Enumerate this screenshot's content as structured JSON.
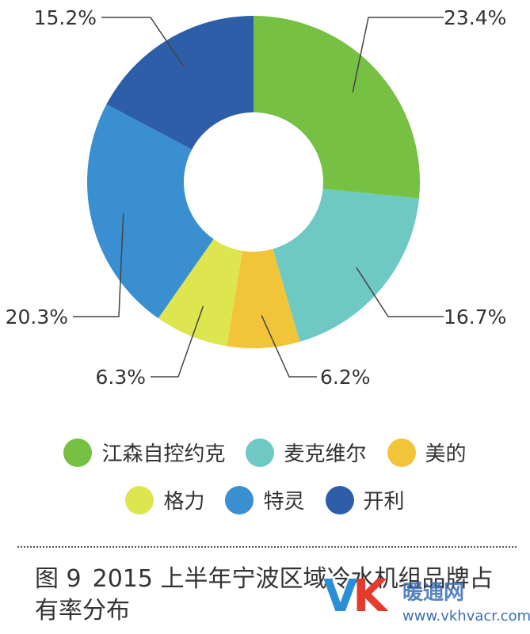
{
  "chart_data": {
    "type": "pie",
    "variant": "donut",
    "categories": [
      "江森自控约克",
      "麦克维尔",
      "美的",
      "格力",
      "特灵",
      "开利"
    ],
    "values": [
      23.4,
      16.7,
      6.2,
      6.3,
      20.3,
      15.2
    ],
    "labels": [
      "23.4%",
      "16.7%",
      "6.2%",
      "6.3%",
      "20.3%",
      "15.2%"
    ],
    "colors": [
      "#76c043",
      "#6ec8c3",
      "#f2c43a",
      "#dde54f",
      "#3a8fd1",
      "#2f5ea8"
    ],
    "title": "",
    "legend_position": "bottom"
  },
  "caption": {
    "figure": "图 9",
    "text": "2015 上半年宁波区域冷水机组品牌占有率分布"
  },
  "watermark": {
    "logo_v": "V",
    "logo_k": "K",
    "name": "暖通网",
    "url": "www.vkhvacr.com"
  }
}
